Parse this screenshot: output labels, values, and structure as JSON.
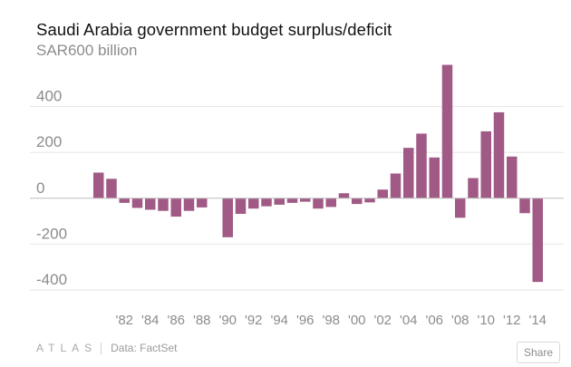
{
  "chart_title": "Saudi Arabia government budget surplus/deficit",
  "footer": {
    "logo": "ATLAS",
    "source": "Data: FactSet",
    "share_label": "Share"
  },
  "colors": {
    "bar": "#a05a85"
  },
  "chart_data": {
    "type": "bar",
    "title": "Saudi Arabia government budget surplus/deficit",
    "ylabel": "",
    "ylim": [
      -400,
      600
    ],
    "yticks": [
      600,
      400,
      200,
      0,
      -200,
      -400
    ],
    "ytick_labels": [
      "SAR600 billion",
      "400",
      "200",
      "0",
      "-200",
      "-400"
    ],
    "x_tick_labels": [
      "'82",
      "'84",
      "'86",
      "'88",
      "'90",
      "'92",
      "'94",
      "'96",
      "'98",
      "'00",
      "'02",
      "'04",
      "'06",
      "'08",
      "'10",
      "'12",
      "'14"
    ],
    "categories": [
      "1980",
      "1981",
      "1982",
      "1983",
      "1984",
      "1985",
      "1986",
      "1987",
      "1988",
      "1989",
      "1990",
      "1991",
      "1992",
      "1993",
      "1994",
      "1995",
      "1996",
      "1997",
      "1998",
      "1999",
      "2000",
      "2001",
      "2002",
      "2003",
      "2004",
      "2005",
      "2006",
      "2007",
      "2008",
      "2009",
      "2010",
      "2011",
      "2012",
      "2013",
      "2014",
      "2015"
    ],
    "values": [
      112,
      85,
      -20,
      -42,
      -50,
      -55,
      -80,
      -55,
      -40,
      0,
      -170,
      -68,
      -45,
      -35,
      -28,
      -20,
      -15,
      -45,
      -38,
      22,
      -25,
      -18,
      38,
      108,
      220,
      282,
      178,
      582,
      -85,
      88,
      292,
      375,
      182,
      -65,
      -365,
      0
    ],
    "grid": true,
    "legend": "none"
  }
}
